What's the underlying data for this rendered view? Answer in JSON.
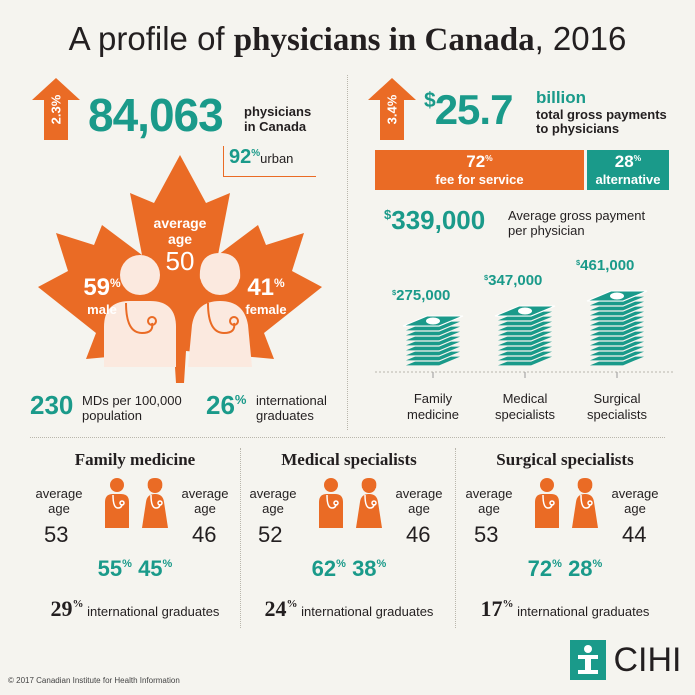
{
  "title": {
    "prefix": "A profile of ",
    "bold": "physicians in Canada",
    "suffix": ", 2016"
  },
  "physicians": {
    "growth": "2.3%",
    "count": "84,063",
    "label1": "physicians",
    "label2": "in Canada",
    "urban_pct": "92",
    "urban_label": "urban"
  },
  "maple": {
    "age_label1": "average",
    "age_label2": "age",
    "age": "50",
    "male_pct": "59",
    "male_label": "male",
    "female_pct": "41",
    "female_label": "female"
  },
  "density": {
    "value": "230",
    "label1": "MDs per 100,000",
    "label2": "population"
  },
  "intl_all": {
    "pct": "26",
    "label1": "international",
    "label2": "graduates"
  },
  "payments": {
    "growth": "3.4%",
    "amount": "25.7",
    "unit": "billion",
    "label1": "total gross payments",
    "label2": "to physicians",
    "fee_pct": "72",
    "fee_label": "fee for service",
    "fee_share": 0.72,
    "alt_pct": "28",
    "alt_label": "alternative",
    "avg_amount": "339,000",
    "avg_label1": "Average gross payment",
    "avg_label2": "per physician"
  },
  "billing": [
    {
      "amount": "275,000",
      "label1": "Family",
      "label2": "medicine",
      "stack": 9
    },
    {
      "amount": "347,000",
      "label1": "Medical",
      "label2": "specialists",
      "stack": 11
    },
    {
      "amount": "461,000",
      "label1": "Surgical",
      "label2": "specialists",
      "stack": 14
    }
  ],
  "sections": [
    {
      "title": "Family medicine",
      "male_age": "53",
      "female_age": "46",
      "male_pct": "55",
      "female_pct": "45",
      "intl_pct": "29"
    },
    {
      "title": "Medical specialists",
      "male_age": "52",
      "female_age": "46",
      "male_pct": "62",
      "female_pct": "38",
      "intl_pct": "24"
    },
    {
      "title": "Surgical specialists",
      "male_age": "53",
      "female_age": "44",
      "male_pct": "72",
      "female_pct": "28",
      "intl_pct": "17"
    }
  ],
  "common": {
    "avg1": "average",
    "avg2": "age",
    "pct_sign": "%",
    "dollar": "$",
    "intl_label": "international graduates"
  },
  "footer": {
    "copyright": "© 2017 Canadian Institute for Health Information",
    "logo": "CIHI"
  },
  "colors": {
    "teal": "#1a9a8a",
    "orange": "#ea6b25",
    "background": "#f5f4ef"
  }
}
